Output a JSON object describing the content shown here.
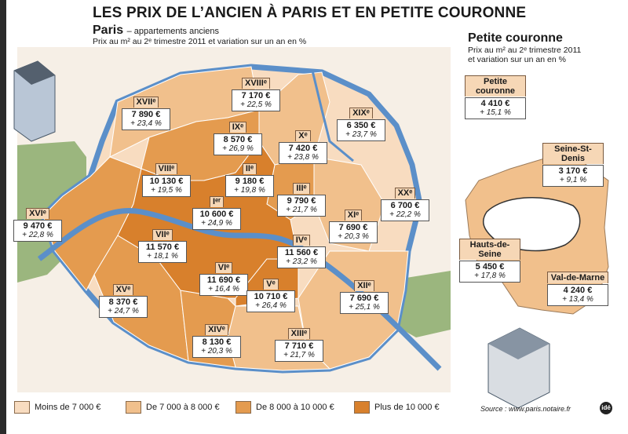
{
  "title": "LES PRIX DE L’ANCIEN À PARIS ET EN PETITE COURONNE",
  "paris": {
    "title": "Paris",
    "subtitle": "– appartements anciens",
    "caption": "Prix au m² au 2ᵉ trimestre 2011 et variation sur un an en %"
  },
  "petite_couronne": {
    "title": "Petite couronne",
    "caption_line1": "Prix au m² au 2ᵉ trimestre 2011",
    "caption_line2": "et variation sur un an en %"
  },
  "colors": {
    "lt7000": "#f8dcc0",
    "7000_8000": "#f1c08c",
    "8000_10000": "#e49b4f",
    "gt10000": "#d8802c",
    "water": "#5b8fc9",
    "green": "#9bb67e"
  },
  "arrondissements": [
    {
      "name": "Iᵉʳ",
      "price": "10 600 €",
      "change": "+ 24,9 %"
    },
    {
      "name": "IIᵉ",
      "price": "9 180 €",
      "change": "+ 19,8 %"
    },
    {
      "name": "IIIᵉ",
      "price": "9 790 €",
      "change": "+ 21,7 %"
    },
    {
      "name": "IVᵉ",
      "price": "11 560 €",
      "change": "+ 23,2 %"
    },
    {
      "name": "Vᵉ",
      "price": "10 710 €",
      "change": "+ 26,4 %"
    },
    {
      "name": "VIᵉ",
      "price": "11 690 €",
      "change": "+ 16,4 %"
    },
    {
      "name": "VIIᵉ",
      "price": "11 570 €",
      "change": "+ 18,1 %"
    },
    {
      "name": "VIIIᵉ",
      "price": "10 130 €",
      "change": "+ 19,5 %"
    },
    {
      "name": "IXᵉ",
      "price": "8 570 €",
      "change": "+ 26,9 %"
    },
    {
      "name": "Xᵉ",
      "price": "7 420 €",
      "change": "+ 23,8 %"
    },
    {
      "name": "XIᵉ",
      "price": "7 690 €",
      "change": "+ 20,3 %"
    },
    {
      "name": "XIIᵉ",
      "price": "7 690 €",
      "change": "+ 25,1 %"
    },
    {
      "name": "XIIIᵉ",
      "price": "7 710 €",
      "change": "+ 21,7 %"
    },
    {
      "name": "XIVᵉ",
      "price": "8 130 €",
      "change": "+ 20,3 %"
    },
    {
      "name": "XVᵉ",
      "price": "8 370 €",
      "change": "+ 24,7 %"
    },
    {
      "name": "XVIᵉ",
      "price": "9 470 €",
      "change": "+ 22,8 %"
    },
    {
      "name": "XVIIᵉ",
      "price": "7 890 €",
      "change": "+ 23,4 %"
    },
    {
      "name": "XVIIIᵉ",
      "price": "7 170 €",
      "change": "+ 22,5 %"
    },
    {
      "name": "XIXᵉ",
      "price": "6 350 €",
      "change": "+ 23,7 %"
    },
    {
      "name": "XXᵉ",
      "price": "6 700 €",
      "change": "+ 22,2 %"
    }
  ],
  "departements": [
    {
      "name": "Petite couronne",
      "price": "4 410 €",
      "change": "+ 15,1 %"
    },
    {
      "name": "Seine-St-Denis",
      "price": "3 170 €",
      "change": "+ 9,1 %"
    },
    {
      "name": "Hauts-de-Seine",
      "price": "5 450 €",
      "change": "+ 17,8 %"
    },
    {
      "name": "Val-de-Marne",
      "price": "4 240 €",
      "change": "+ 13,4 %"
    }
  ],
  "legend": [
    {
      "label": "Moins de 7 000 €",
      "color": "#f8dcc0"
    },
    {
      "label": "De 7 000 à 8 000 €",
      "color": "#f1c08c"
    },
    {
      "label": "De 8 000 à 10 000 €",
      "color": "#e49b4f"
    },
    {
      "label": "Plus de 10 000 €",
      "color": "#d8802c"
    }
  ],
  "source": "Source : www.paris.notaire.fr",
  "logo_text": "idé"
}
